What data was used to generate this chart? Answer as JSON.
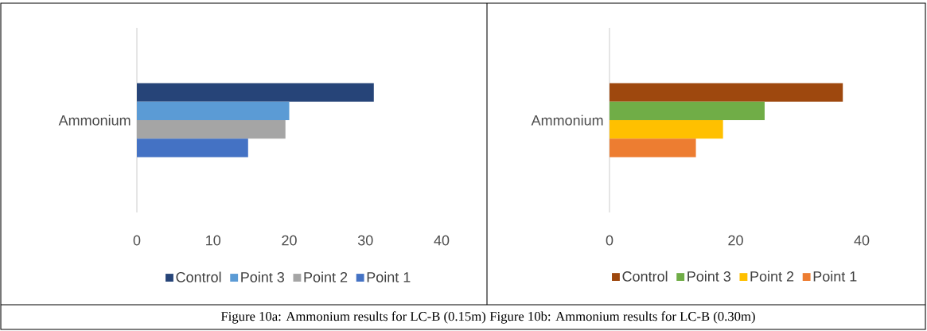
{
  "chart_data": [
    {
      "type": "bar",
      "orientation": "horizontal",
      "categories": [
        "Ammonium"
      ],
      "series": [
        {
          "name": "Control",
          "color": "#264478",
          "values": [
            31.1
          ]
        },
        {
          "name": "Point 3",
          "color": "#5b9bd5",
          "values": [
            20.0
          ]
        },
        {
          "name": "Point 2",
          "color": "#a5a5a5",
          "values": [
            19.5
          ]
        },
        {
          "name": "Point 1",
          "color": "#4472c4",
          "values": [
            14.6
          ]
        }
      ],
      "xlim": [
        0,
        40
      ],
      "xticks": [
        0,
        10,
        20,
        30,
        40
      ],
      "grid": false,
      "legend": "bottom",
      "annotations": [
        "Figure 10a: Ammonium results for LC-B (0.15m)"
      ]
    },
    {
      "type": "bar",
      "orientation": "horizontal",
      "categories": [
        "Ammonium"
      ],
      "series": [
        {
          "name": "Control",
          "color": "#9e480e",
          "values": [
            37.0
          ]
        },
        {
          "name": "Point 3",
          "color": "#70ad47",
          "values": [
            24.6
          ]
        },
        {
          "name": "Point 2",
          "color": "#ffc000",
          "values": [
            18.0
          ]
        },
        {
          "name": "Point 1",
          "color": "#ed7d31",
          "values": [
            13.7
          ]
        }
      ],
      "xlim": [
        0,
        40
      ],
      "xticks": [
        0,
        20,
        40
      ],
      "grid": false,
      "legend": "bottom",
      "annotations": [
        "Figure 10b: Ammonium results for LC-B (0.30m)"
      ]
    }
  ]
}
